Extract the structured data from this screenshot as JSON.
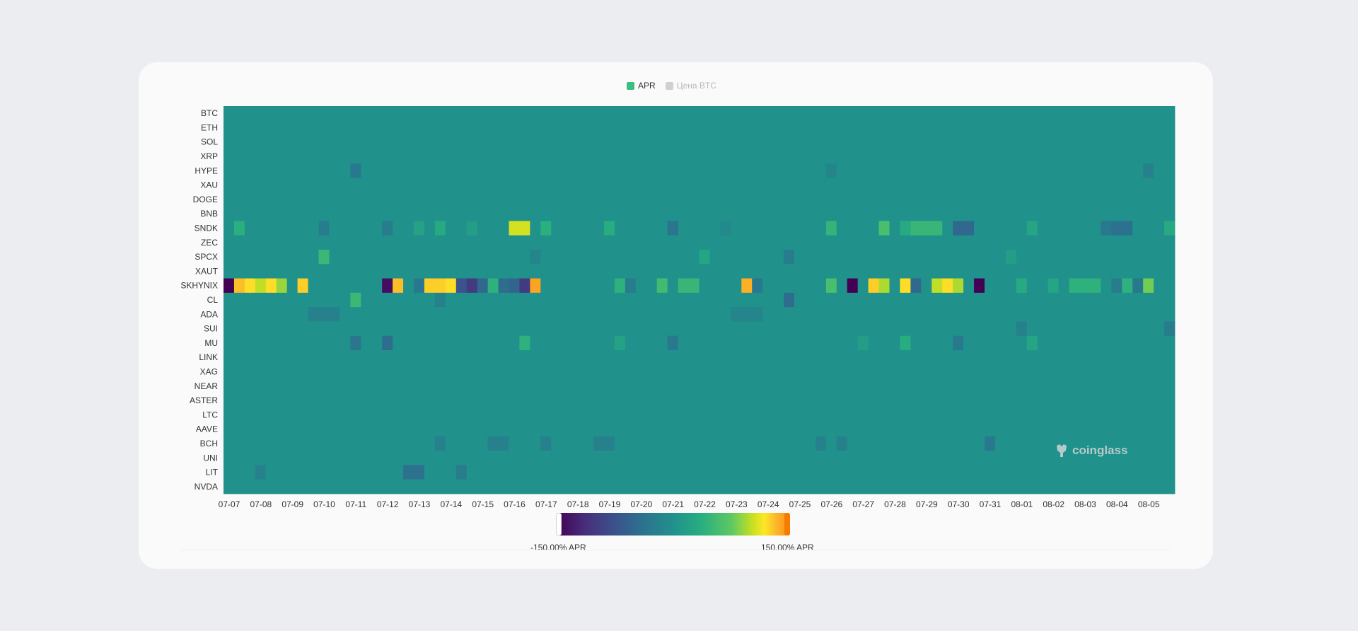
{
  "legend": {
    "items": [
      {
        "label": "APR",
        "color": "#3cbf7e",
        "active": true
      },
      {
        "label": "Цена BTC",
        "color": "#d0d0d0",
        "active": false
      }
    ]
  },
  "watermark": {
    "text": "coinglass",
    "icon": "coinglass-logo-icon"
  },
  "colorbar": {
    "min_label": "-150.00% APR",
    "max_label": "150.00% APR",
    "min": -150,
    "max": 150
  },
  "chart_data": {
    "type": "heatmap",
    "colormap": "viridis",
    "value_range": [
      -150,
      150
    ],
    "y": [
      "BTC",
      "ETH",
      "SOL",
      "XRP",
      "HYPE",
      "XAU",
      "DOGE",
      "BNB",
      "SNDK",
      "ZEC",
      "SPCX",
      "XAUT",
      "SKHYNIX",
      "CL",
      "ADA",
      "SUI",
      "MU",
      "LINK",
      "XAG",
      "NEAR",
      "ASTER",
      "LTC",
      "AAVE",
      "BCH",
      "UNI",
      "LIT",
      "NVDA"
    ],
    "x_tick_labels": [
      "07-07",
      "07-08",
      "07-09",
      "07-10",
      "07-11",
      "07-12",
      "07-13",
      "07-14",
      "07-15",
      "07-16",
      "07-17",
      "07-18",
      "07-19",
      "07-20",
      "07-21",
      "07-22",
      "07-23",
      "07-24",
      "07-25",
      "07-26",
      "07-27",
      "07-28",
      "07-29",
      "07-30",
      "07-31",
      "08-01",
      "08-02",
      "08-03",
      "08-04",
      "08-05"
    ],
    "periods_per_day": 3,
    "default_value": 0,
    "notable_cells": {
      "SNDK": {
        "1": 38,
        "9": -25,
        "15": -25,
        "18": 20,
        "20": 30,
        "23": 15,
        "27": 105,
        "28": 105,
        "30": 38,
        "36": 35,
        "42": -35,
        "47": -10,
        "57": 45,
        "62": 60,
        "64": 30,
        "65": 48,
        "66": 48,
        "67": 48,
        "69": -50,
        "70": -50,
        "76": 25,
        "83": -30,
        "84": -40,
        "85": -40,
        "89": 30,
        "90": 20
      },
      "SPCX": {
        "9": 50,
        "29": -15,
        "45": 25,
        "53": -25,
        "74": 15
      },
      "SKHYNIX": {
        "0": -150,
        "1": 130,
        "2": 120,
        "3": 100,
        "4": 120,
        "5": 90,
        "7": 125,
        "15": -140,
        "16": 130,
        "18": -30,
        "19": 125,
        "20": 125,
        "21": 120,
        "22": -75,
        "23": -100,
        "24": -50,
        "25": 40,
        "26": -45,
        "27": -55,
        "28": -100,
        "29": 140,
        "37": 40,
        "38": -25,
        "41": 55,
        "43": 48,
        "44": 48,
        "49": 135,
        "50": -30,
        "57": 60,
        "59": -150,
        "61": 125,
        "62": 95,
        "64": 120,
        "65": -50,
        "67": 100,
        "68": 120,
        "69": 95,
        "71": -150,
        "75": 30,
        "78": 25,
        "80": 40,
        "81": 40,
        "82": 40,
        "84": -25,
        "85": 40,
        "86": -30,
        "87": 80
      },
      "CL": {
        "12": 50,
        "20": -20,
        "53": -45
      },
      "MU": {
        "12": -35,
        "15": -45,
        "28": 40,
        "37": 20,
        "42": -30,
        "60": 15,
        "64": 35,
        "69": -30,
        "76": 25
      },
      "HYPE": {
        "12": -30,
        "57": -15,
        "87": -20
      },
      "LIT": {
        "3": -20,
        "17": -40,
        "18": -40,
        "22": -25
      },
      "BCH": {
        "20": -20,
        "25": -20,
        "26": -20,
        "30": -20,
        "35": -20,
        "36": -20,
        "56": -20,
        "58": -20,
        "72": -30
      },
      "ADA": {
        "8": -20,
        "9": -20,
        "10": -20,
        "48": -15,
        "49": -15,
        "50": -15
      },
      "SUI": {
        "75": -20,
        "89": -25
      }
    }
  }
}
